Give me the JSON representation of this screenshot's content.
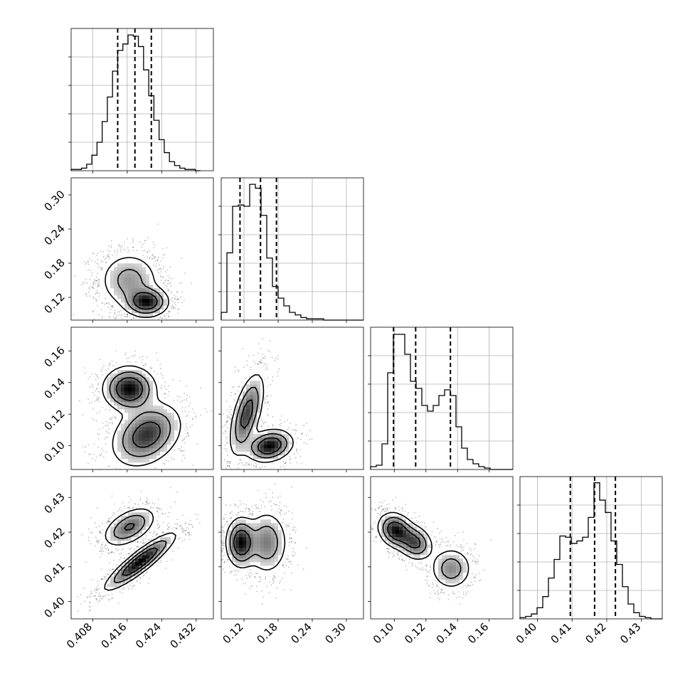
{
  "chart_data": {
    "type": "corner",
    "parameters": 4,
    "ranges": [
      [
        0.403,
        0.436
      ],
      [
        0.08,
        0.33
      ],
      [
        0.085,
        0.175
      ],
      [
        0.395,
        0.436
      ]
    ],
    "ticks": [
      [
        0.408,
        0.416,
        0.424,
        0.432
      ],
      [
        0.12,
        0.18,
        0.24,
        0.3
      ],
      [
        0.1,
        0.12,
        0.14,
        0.16
      ],
      [
        0.4,
        0.41,
        0.42,
        0.43
      ]
    ],
    "tick_labels": [
      [
        "0.408",
        "0.416",
        "0.424",
        "0.432"
      ],
      [
        "0.12",
        "0.18",
        "0.24",
        "0.30"
      ],
      [
        "0.10",
        "0.12",
        "0.14",
        "0.16"
      ],
      [
        "0.40",
        "0.41",
        "0.42",
        "0.43"
      ]
    ],
    "quantiles": [
      [
        0.4138,
        0.4178,
        0.4216
      ],
      [
        0.113,
        0.149,
        0.177
      ],
      [
        0.0995,
        0.1135,
        0.1355
      ],
      [
        0.4095,
        0.4165,
        0.4225
      ]
    ],
    "histograms": [
      {
        "min": 0.403,
        "max": 0.433,
        "counts": [
          1,
          1,
          2,
          5,
          12,
          22,
          38,
          57,
          77,
          93,
          98,
          105,
          104,
          96,
          78,
          58,
          39,
          24,
          14,
          7,
          4,
          2,
          1,
          1,
          0
        ]
      },
      {
        "min": 0.08,
        "max": 0.33,
        "counts": [
          6,
          52,
          88,
          89,
          88,
          105,
          102,
          81,
          48,
          26,
          17,
          11,
          6,
          4,
          2,
          1,
          1,
          1,
          0,
          0,
          0,
          0,
          0,
          0,
          0
        ]
      },
      {
        "min": 0.085,
        "max": 0.175,
        "counts": [
          2,
          3,
          18,
          68,
          95,
          95,
          81,
          62,
          57,
          45,
          41,
          45,
          52,
          56,
          52,
          30,
          15,
          7,
          4,
          2,
          1,
          0,
          0,
          0,
          0
        ]
      },
      {
        "min": 0.395,
        "max": 0.436,
        "counts": [
          1,
          2,
          4,
          9,
          18,
          33,
          48,
          67,
          66,
          61,
          63,
          66,
          82,
          110,
          96,
          86,
          63,
          44,
          26,
          12,
          5,
          2,
          1,
          0,
          0
        ]
      }
    ],
    "histogram_ylim": [
      [
        0,
        110
      ],
      [
        0,
        110
      ],
      [
        0,
        100
      ],
      [
        0,
        115
      ]
    ],
    "grid": true,
    "panels": [
      {
        "row": 1,
        "col": 0,
        "modes": [
          {
            "x": 0.4165,
            "y": 0.15,
            "sx": 0.0035,
            "sy": 0.025,
            "r": 0,
            "w": 0.55
          },
          {
            "x": 0.4205,
            "y": 0.112,
            "sx": 0.0025,
            "sy": 0.013,
            "r": 0,
            "w": 0.45
          }
        ]
      },
      {
        "row": 2,
        "col": 0,
        "modes": [
          {
            "x": 0.4165,
            "y": 0.136,
            "sx": 0.003,
            "sy": 0.007,
            "r": 0,
            "w": 0.4
          },
          {
            "x": 0.4205,
            "y": 0.107,
            "sx": 0.004,
            "sy": 0.01,
            "r": 0.3,
            "w": 0.6
          }
        ]
      },
      {
        "row": 2,
        "col": 1,
        "modes": [
          {
            "x": 0.125,
            "y": 0.12,
            "sx": 0.015,
            "sy": 0.013,
            "r": 0.6,
            "w": 0.55
          },
          {
            "x": 0.165,
            "y": 0.1,
            "sx": 0.02,
            "sy": 0.005,
            "r": 0.2,
            "w": 0.45
          }
        ]
      },
      {
        "row": 3,
        "col": 0,
        "modes": [
          {
            "x": 0.4165,
            "y": 0.4215,
            "sx": 0.003,
            "sy": 0.0028,
            "r": 0.5,
            "w": 0.4
          },
          {
            "x": 0.419,
            "y": 0.4115,
            "sx": 0.004,
            "sy": 0.004,
            "r": 0.9,
            "w": 0.6
          }
        ]
      },
      {
        "row": 3,
        "col": 1,
        "modes": [
          {
            "x": 0.115,
            "y": 0.417,
            "sx": 0.013,
            "sy": 0.0035,
            "r": 0,
            "w": 0.5
          },
          {
            "x": 0.16,
            "y": 0.417,
            "sx": 0.018,
            "sy": 0.0045,
            "r": 0,
            "w": 0.5
          }
        ]
      },
      {
        "row": 3,
        "col": 2,
        "modes": [
          {
            "x": 0.101,
            "y": 0.4205,
            "sx": 0.0055,
            "sy": 0.0025,
            "r": -0.2,
            "w": 0.4
          },
          {
            "x": 0.113,
            "y": 0.417,
            "sx": 0.0055,
            "sy": 0.0025,
            "r": -0.2,
            "w": 0.3
          },
          {
            "x": 0.136,
            "y": 0.4095,
            "sx": 0.0065,
            "sy": 0.003,
            "r": 0,
            "w": 0.3
          }
        ]
      }
    ]
  }
}
